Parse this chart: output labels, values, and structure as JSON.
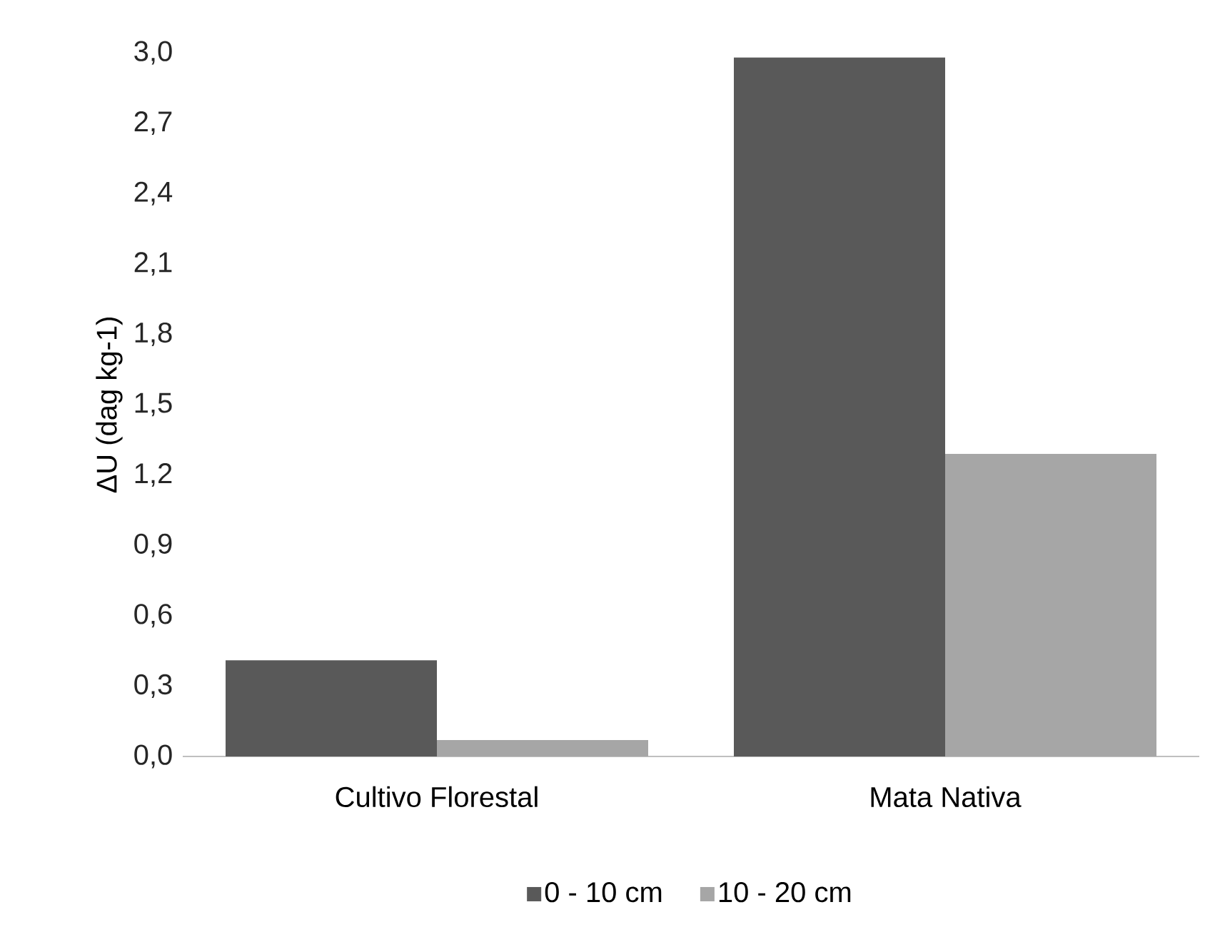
{
  "chart_data": {
    "type": "bar",
    "ylabel": "ΔU (dag kg-1)",
    "categories": [
      "Cultivo Florestal",
      "Mata Nativa"
    ],
    "series": [
      {
        "name": "0 - 10 cm",
        "color": "#595959",
        "values": [
          0.41,
          2.98
        ]
      },
      {
        "name": "10 - 20 cm",
        "color": "#a6a6a6",
        "values": [
          0.07,
          1.29
        ]
      }
    ],
    "ylim": [
      0,
      3.0
    ],
    "yticks": [
      {
        "value": 0,
        "label": "0,0"
      },
      {
        "value": 0.3,
        "label": "0,3"
      },
      {
        "value": 0.6,
        "label": "0,6"
      },
      {
        "value": 0.9,
        "label": "0,9"
      },
      {
        "value": 1.2,
        "label": "1,2"
      },
      {
        "value": 1.5,
        "label": "1,5"
      },
      {
        "value": 1.8,
        "label": "1,8"
      },
      {
        "value": 2.1,
        "label": "2,1"
      },
      {
        "value": 2.4,
        "label": "2,4"
      },
      {
        "value": 2.7,
        "label": "2,7"
      },
      {
        "value": 3.0,
        "label": "3,0"
      }
    ],
    "legend": "bottom"
  }
}
